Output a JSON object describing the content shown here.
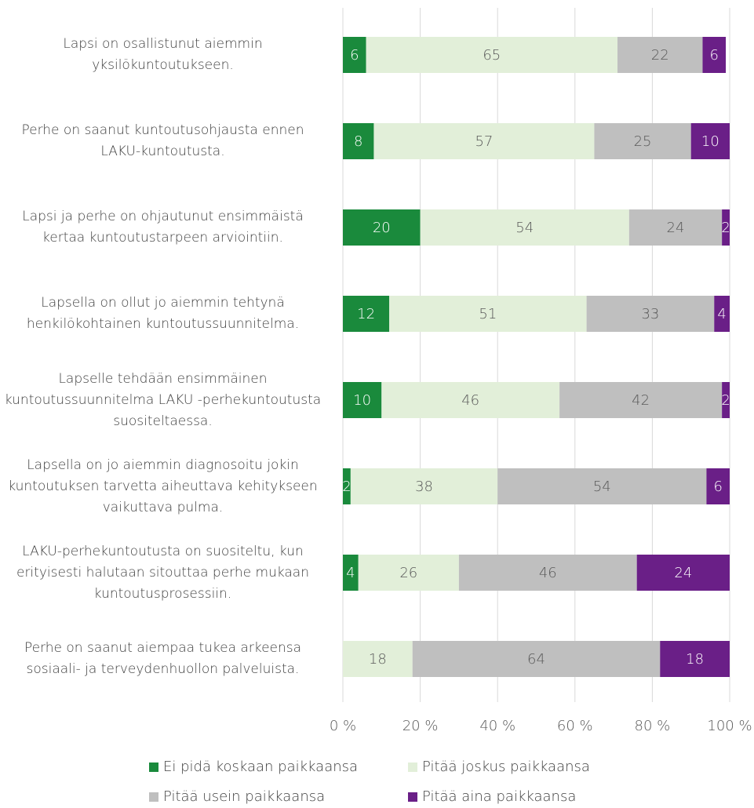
{
  "chart_data": {
    "type": "stacked_barh",
    "categories": [
      "Lapsi on osallistunut aiemmin yksilökuntoutukseen.",
      "Perhe on saanut kuntoutusohjausta ennen LAKU-kuntoutusta.",
      "Lapsi ja perhe on ohjautunut ensimmäistä kertaa kuntoutustarpeen arviointiin.",
      "Lapsella on ollut jo aiemmin tehtynä henkilökohtainen kuntoutussuunnitelma.",
      "Lapselle tehdään ensimmäinen kuntoutussuunnitelma LAKU -perhekuntoutusta suositeltaessa.",
      "Lapsella on jo aiemmin diagnosoitu jokin kuntoutuksen tarvetta aiheuttava kehitykseen vaikuttava pulma.",
      "LAKU-perhekuntoutusta on suositeltu, kun erityisesti halutaan sitouttaa perhe mukaan kuntoutusprosessiin.",
      "Perhe on saanut aiempaa tukea arkeensa sosiaali- ja terveydenhuollon palveluista."
    ],
    "series": [
      {
        "name": "Ei pidä koskaan paikkaansa",
        "color": "#1a8a3c",
        "values": [
          6,
          8,
          20,
          12,
          10,
          2,
          4,
          null
        ]
      },
      {
        "name": "Pitää joskus paikkaansa",
        "color": "#e2efd9",
        "values": [
          65,
          57,
          54,
          51,
          46,
          38,
          26,
          18
        ]
      },
      {
        "name": "Pitää usein paikkaansa",
        "color": "#bfbfbf",
        "values": [
          22,
          25,
          24,
          33,
          42,
          54,
          46,
          64
        ]
      },
      {
        "name": "Pitää aina paikkaansa",
        "color": "#6a1f87",
        "values": [
          6,
          10,
          2,
          4,
          2,
          6,
          24,
          18
        ]
      }
    ],
    "xlim": [
      0,
      100
    ],
    "xticks": [
      {
        "value": 0,
        "label": "0 %"
      },
      {
        "value": 20,
        "label": "20 %"
      },
      {
        "value": 40,
        "label": "40 %"
      },
      {
        "value": 60,
        "label": "60 %"
      },
      {
        "value": 80,
        "label": "80 %"
      },
      {
        "value": 100,
        "label": "100 %"
      }
    ],
    "grid": true,
    "legend": "bottom"
  }
}
